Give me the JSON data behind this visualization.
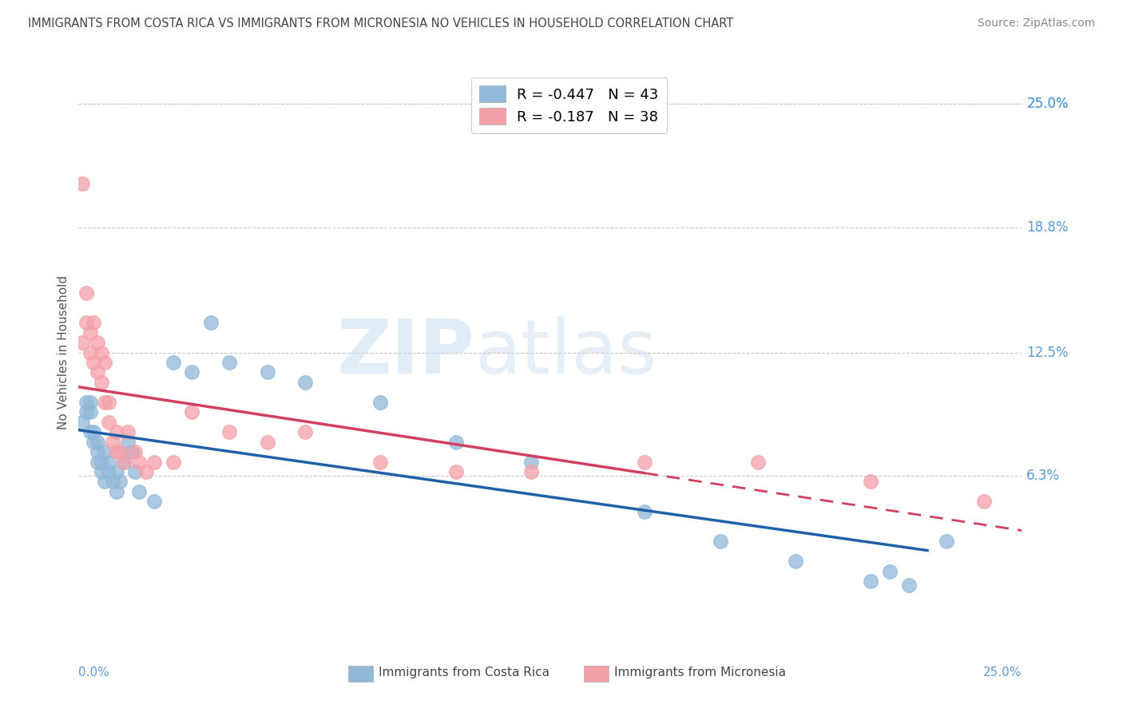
{
  "title": "IMMIGRANTS FROM COSTA RICA VS IMMIGRANTS FROM MICRONESIA NO VEHICLES IN HOUSEHOLD CORRELATION CHART",
  "source": "Source: ZipAtlas.com",
  "ylabel": "No Vehicles in Household",
  "ytick_labels": [
    "25.0%",
    "18.8%",
    "12.5%",
    "6.3%"
  ],
  "ytick_values": [
    0.25,
    0.188,
    0.125,
    0.063
  ],
  "xlim": [
    0.0,
    0.25
  ],
  "ylim": [
    -0.02,
    0.27
  ],
  "legend_entries": [
    {
      "label": "R = -0.447   N = 43",
      "color": "#92b8d8"
    },
    {
      "label": "R = -0.187   N = 38",
      "color": "#f4a0a8"
    }
  ],
  "costa_rica_color": "#92b8d8",
  "micronesia_color": "#f4a0a8",
  "costa_rica_line_color": "#2060a8",
  "micronesia_line_color": "#d04060",
  "watermark_zip": "ZIP",
  "watermark_atlas": "atlas",
  "costa_rica_x": [
    0.001,
    0.002,
    0.002,
    0.003,
    0.003,
    0.003,
    0.004,
    0.004,
    0.005,
    0.005,
    0.005,
    0.006,
    0.006,
    0.007,
    0.007,
    0.008,
    0.008,
    0.009,
    0.01,
    0.01,
    0.011,
    0.012,
    0.013,
    0.014,
    0.015,
    0.016,
    0.02,
    0.025,
    0.03,
    0.035,
    0.04,
    0.05,
    0.06,
    0.08,
    0.1,
    0.12,
    0.15,
    0.17,
    0.19,
    0.21,
    0.215,
    0.22,
    0.23
  ],
  "costa_rica_y": [
    0.09,
    0.095,
    0.1,
    0.1,
    0.095,
    0.085,
    0.085,
    0.08,
    0.08,
    0.075,
    0.07,
    0.07,
    0.065,
    0.075,
    0.06,
    0.065,
    0.07,
    0.06,
    0.055,
    0.065,
    0.06,
    0.07,
    0.08,
    0.075,
    0.065,
    0.055,
    0.05,
    0.12,
    0.115,
    0.14,
    0.12,
    0.115,
    0.11,
    0.1,
    0.08,
    0.07,
    0.045,
    0.03,
    0.02,
    0.01,
    0.015,
    0.008,
    0.03
  ],
  "micronesia_x": [
    0.001,
    0.001,
    0.002,
    0.002,
    0.003,
    0.003,
    0.004,
    0.004,
    0.005,
    0.005,
    0.006,
    0.006,
    0.007,
    0.007,
    0.008,
    0.008,
    0.009,
    0.01,
    0.01,
    0.011,
    0.012,
    0.013,
    0.015,
    0.016,
    0.018,
    0.02,
    0.025,
    0.03,
    0.04,
    0.05,
    0.06,
    0.08,
    0.1,
    0.12,
    0.15,
    0.18,
    0.21,
    0.24
  ],
  "micronesia_y": [
    0.21,
    0.13,
    0.155,
    0.14,
    0.135,
    0.125,
    0.14,
    0.12,
    0.13,
    0.115,
    0.125,
    0.11,
    0.12,
    0.1,
    0.1,
    0.09,
    0.08,
    0.085,
    0.075,
    0.075,
    0.07,
    0.085,
    0.075,
    0.07,
    0.065,
    0.07,
    0.07,
    0.095,
    0.085,
    0.08,
    0.085,
    0.07,
    0.065,
    0.065,
    0.07,
    0.07,
    0.06,
    0.05
  ]
}
